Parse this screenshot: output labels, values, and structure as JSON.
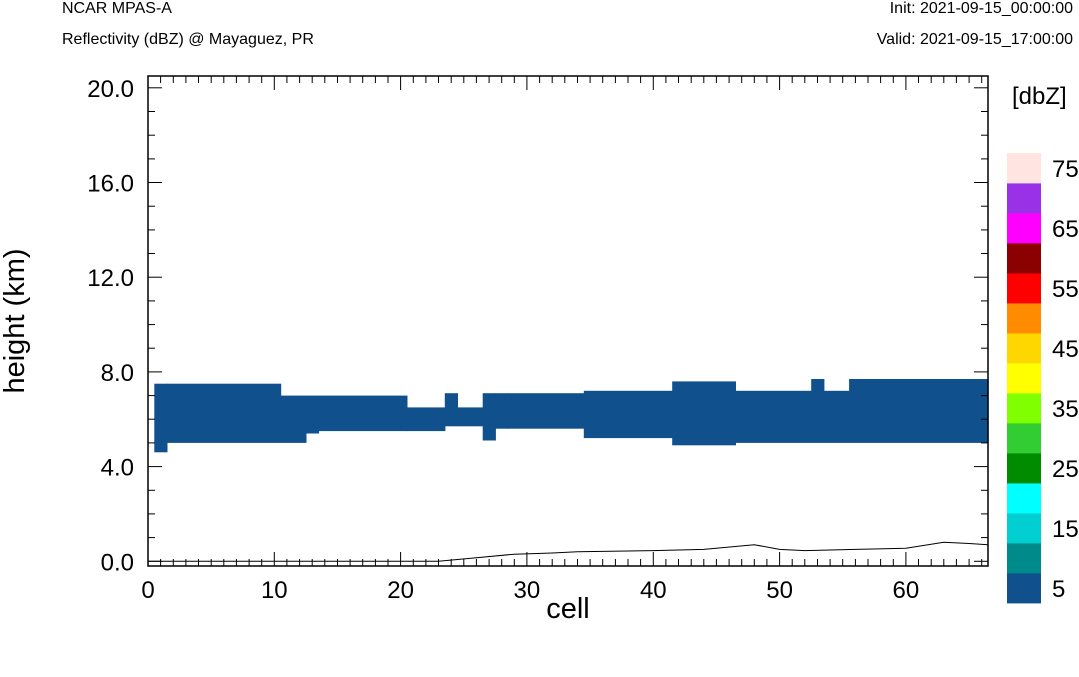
{
  "header": {
    "model": "NCAR MPAS-A",
    "field": "Reflectivity (dBZ) @ Mayaguez, PR",
    "init": "Init: 2021-09-15_00:00:00",
    "valid": "Valid: 2021-09-15_17:00:00"
  },
  "chart_data": {
    "type": "heatmap",
    "xlabel": "cell",
    "ylabel": "height (km)",
    "xlim": [
      0,
      66.5
    ],
    "ylim": [
      -0.2,
      20.5
    ],
    "x_ticks": [
      0,
      10,
      20,
      30,
      40,
      50,
      60
    ],
    "y_ticks": [
      0.0,
      4.0,
      8.0,
      12.0,
      16.0,
      20.0
    ],
    "y_tick_labels": [
      "0.0",
      "4.0",
      "8.0",
      "12.0",
      "16.0",
      "20.0"
    ],
    "colorbar": {
      "unit_label": "[dbZ]",
      "labels": [
        "5",
        "15",
        "25",
        "35",
        "45",
        "55",
        "65",
        "75"
      ],
      "levels": [
        5,
        10,
        15,
        20,
        25,
        30,
        35,
        40,
        45,
        50,
        55,
        60,
        65,
        70,
        75
      ],
      "colors": [
        "#10508c",
        "#008b8b",
        "#00ced1",
        "#00ffff",
        "#008b00",
        "#32cd32",
        "#7fff00",
        "#ffff00",
        "#ffd700",
        "#ff8c00",
        "#ff0000",
        "#8b0000",
        "#ff00ff",
        "#9932e6",
        "#ffe4e1"
      ]
    },
    "reflectivity_dbz_range": [
      5,
      10
    ],
    "echo_layer": [
      {
        "x0": 0.5,
        "x1": 1.5,
        "base_km": 4.6,
        "top_km": 7.5
      },
      {
        "x0": 1.5,
        "x1": 10.5,
        "base_km": 5.0,
        "top_km": 7.5
      },
      {
        "x0": 10.5,
        "x1": 12.5,
        "base_km": 5.0,
        "top_km": 7.0
      },
      {
        "x0": 12.5,
        "x1": 13.5,
        "base_km": 5.4,
        "top_km": 7.0
      },
      {
        "x0": 13.5,
        "x1": 20.5,
        "base_km": 5.5,
        "top_km": 7.0
      },
      {
        "x0": 20.5,
        "x1": 23.5,
        "base_km": 5.5,
        "top_km": 6.5
      },
      {
        "x0": 23.5,
        "x1": 24.5,
        "base_km": 5.7,
        "top_km": 7.1
      },
      {
        "x0": 24.5,
        "x1": 26.5,
        "base_km": 5.7,
        "top_km": 6.5
      },
      {
        "x0": 26.5,
        "x1": 27.5,
        "base_km": 5.1,
        "top_km": 7.1
      },
      {
        "x0": 27.5,
        "x1": 28.5,
        "base_km": 5.6,
        "top_km": 7.1
      },
      {
        "x0": 28.5,
        "x1": 34.5,
        "base_km": 5.6,
        "top_km": 7.1
      },
      {
        "x0": 34.5,
        "x1": 41.5,
        "base_km": 5.2,
        "top_km": 7.2
      },
      {
        "x0": 41.5,
        "x1": 46.5,
        "base_km": 4.9,
        "top_km": 7.6
      },
      {
        "x0": 46.5,
        "x1": 52.5,
        "base_km": 5.0,
        "top_km": 7.2
      },
      {
        "x0": 52.5,
        "x1": 53.5,
        "base_km": 5.0,
        "top_km": 7.7
      },
      {
        "x0": 53.5,
        "x1": 55.5,
        "base_km": 5.0,
        "top_km": 7.2
      },
      {
        "x0": 55.5,
        "x1": 66.5,
        "base_km": 5.0,
        "top_km": 7.7
      }
    ],
    "terrain_line": {
      "x": [
        0,
        23,
        26,
        29,
        32,
        34,
        40,
        44,
        48,
        50,
        52,
        56,
        60,
        63,
        65,
        66.5
      ],
      "height_km": [
        0.0,
        0.0,
        0.15,
        0.3,
        0.35,
        0.4,
        0.45,
        0.5,
        0.7,
        0.5,
        0.45,
        0.5,
        0.55,
        0.8,
        0.75,
        0.7
      ]
    },
    "grid": false
  }
}
